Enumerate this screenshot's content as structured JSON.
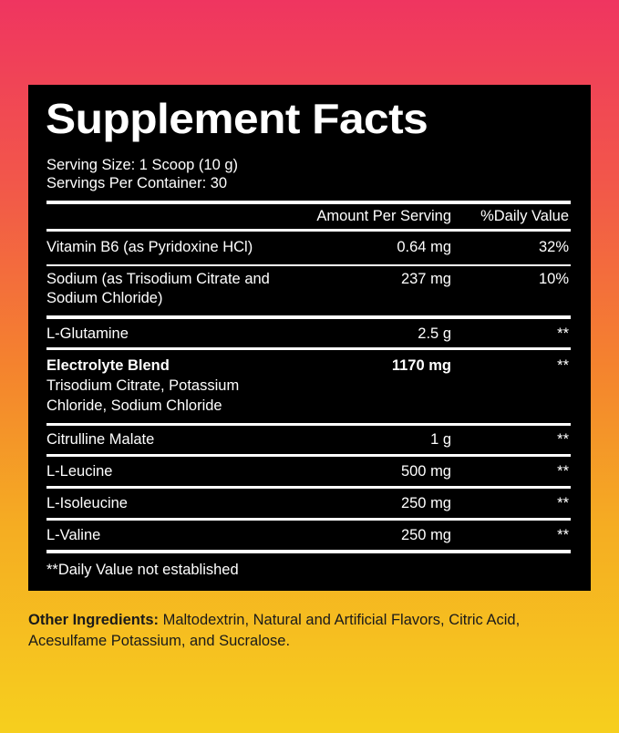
{
  "title": "Supplement Facts",
  "serving_size": "Serving Size: 1 Scoop (10 g)",
  "servings_per_container": "Servings Per Container: 30",
  "header": {
    "amount": "Amount Per Serving",
    "dv": "%Daily Value"
  },
  "rows": [
    {
      "name": "Vitamin B6 (as Pyridoxine HCl)",
      "amount": "0.64 mg",
      "dv": "32%"
    },
    {
      "name": "Sodium (as Trisodium Citrate and Sodium Chloride)",
      "amount": "237 mg",
      "dv": "10%"
    },
    {
      "name": "L-Glutamine",
      "amount": "2.5 g",
      "dv": "**"
    },
    {
      "name": "Electrolyte Blend",
      "sub": "Trisodium Citrate, Potassium Chloride, Sodium Chloride",
      "amount": "1170 mg",
      "dv": "**"
    },
    {
      "name": "Citrulline Malate",
      "amount": "1 g",
      "dv": "**"
    },
    {
      "name": "L-Leucine",
      "amount": "500 mg",
      "dv": "**"
    },
    {
      "name": "L-Isoleucine",
      "amount": "250 mg",
      "dv": "**"
    },
    {
      "name": "L-Valine",
      "amount": "250 mg",
      "dv": "**"
    }
  ],
  "footnote": "**Daily Value not established",
  "other_ingredients": {
    "label": "Other Ingredients:",
    "text": " Maltodextrin, Natural and Artificial Flavors, Citric Acid, Acesulfame Potassium, and Sucralose."
  },
  "colors": {
    "gradient_top": "#ef3560",
    "gradient_bottom": "#f6cf1e",
    "panel": "#000000"
  }
}
